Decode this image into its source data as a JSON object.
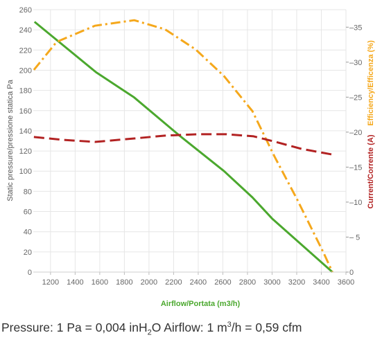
{
  "chart_data": {
    "type": "line",
    "xlabel": "Airflow/Portata (m3/h)",
    "ylabel_left": "Static pressure/pressione statica Pa",
    "ylabel_right_1": "Efficiency/Efficenza (%)",
    "ylabel_right_2": "Current/Corrente (A)",
    "xlim": [
      1060,
      3600
    ],
    "x_ticks": [
      1200,
      1400,
      1600,
      1800,
      2000,
      2200,
      2400,
      2600,
      2800,
      3000,
      3200,
      3400,
      3600
    ],
    "ylim_left": [
      0,
      260
    ],
    "y_ticks_left": [
      0,
      20,
      40,
      60,
      80,
      100,
      120,
      140,
      160,
      180,
      200,
      220,
      240,
      260
    ],
    "ylim_right": [
      0,
      37.5
    ],
    "y_ticks_right": [
      0,
      5,
      10,
      15,
      20,
      25,
      30,
      35
    ],
    "y_tick_labels_right": [
      "0",
      "– 5",
      "–10",
      "–15",
      "–20",
      "–25",
      "–30",
      "–35"
    ],
    "grid": true,
    "series": [
      {
        "axis": "left",
        "color": "#4ba82e",
        "style": "solid",
        "x": [
          1070,
          1570,
          1880,
          2250,
          2610,
          2840,
          3000,
          3490
        ],
        "y": [
          248,
          198,
          173,
          135,
          100,
          74,
          53,
          0
        ]
      },
      {
        "axis": "right",
        "color": "#f5a81c",
        "style": "dash-dot",
        "x": [
          1065,
          1250,
          1560,
          1880,
          2130,
          2380,
          2610,
          2840,
          3020,
          3200,
          3420,
          3490
        ],
        "y": [
          28.9,
          32.9,
          35.2,
          36.0,
          34.7,
          31.8,
          28.0,
          23.0,
          16.5,
          10.5,
          2.7,
          0
        ]
      },
      {
        "axis": "right",
        "color": "#b22222",
        "style": "dashed",
        "x": [
          1065,
          1300,
          1560,
          1880,
          2130,
          2400,
          2630,
          2850,
          3030,
          3240,
          3490
        ],
        "y": [
          19.3,
          18.9,
          18.6,
          19.1,
          19.5,
          19.7,
          19.7,
          19.4,
          18.6,
          17.6,
          16.8
        ]
      }
    ]
  },
  "footer": {
    "pressure_prefix": "Pressure: 1 Pa = 0,004 inH",
    "pressure_sub": "2",
    "pressure_suffix": "O Airflow: 1 m",
    "airflow_sup": "3",
    "airflow_suffix": "/h = 0,59 cfm"
  }
}
